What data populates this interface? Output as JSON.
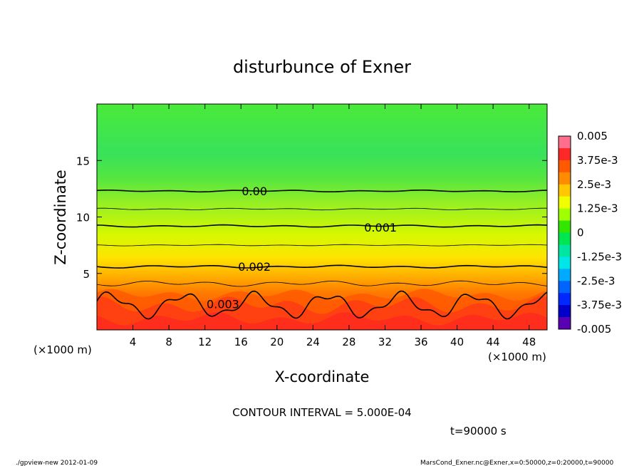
{
  "chart_data": {
    "type": "heatmap",
    "title": "disturbunce of Exner",
    "xlabel": "X-coordinate",
    "ylabel": "Z-coordinate",
    "x_unit_left": "(×1000 m)",
    "x_unit_right": "(×1000 m)",
    "xlim": [
      0,
      50
    ],
    "ylim": [
      0,
      20
    ],
    "x_ticks": [
      4,
      8,
      12,
      16,
      20,
      24,
      28,
      32,
      36,
      40,
      44,
      48
    ],
    "y_ticks": [
      5,
      10,
      15
    ],
    "contour_labels": [
      {
        "text": "0.00",
        "x": 17.5,
        "z": 12.3
      },
      {
        "text": "0.001",
        "x": 31.5,
        "z": 9.1
      },
      {
        "text": "0.002",
        "x": 17.5,
        "z": 5.6
      },
      {
        "text": "0.003",
        "x": 14.0,
        "z": 2.3
      }
    ],
    "colorbar": {
      "range": [
        -0.005,
        0.005
      ],
      "labels": [
        "0.005",
        "3.75e-3",
        "2.5e-3",
        "1.25e-3",
        "0",
        "-1.25e-3",
        "-2.5e-3",
        "-3.75e-3",
        "-0.005"
      ],
      "colors": [
        "#ff6e8c",
        "#ff2828",
        "#ff5a00",
        "#ff8c00",
        "#ffc800",
        "#f0ff00",
        "#a0ff00",
        "#32e600",
        "#00e650",
        "#00e6a0",
        "#00e6e6",
        "#00aaff",
        "#0064ff",
        "#0028ff",
        "#0000c8",
        "#5a00b4"
      ]
    },
    "contour_interval": "CONTOUR INTERVAL = 5.000E-04",
    "time_label": "t=90000 s"
  },
  "footer": {
    "left": "./gpview-new  2012-01-09",
    "right": "MarsCond_Exner.nc@Exner,x=0:50000,z=0:20000,t=90000"
  }
}
